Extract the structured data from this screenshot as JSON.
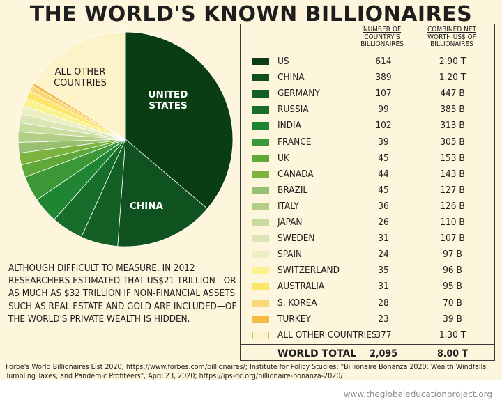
{
  "title": "THE WORLD'S KNOWN BILLIONAIRES",
  "pie_labels": {
    "us": "UNITED STATES",
    "china": "CHINA",
    "other": "ALL OTHER COUNTRIES"
  },
  "note": "ALTHOUGH DIFFICULT TO MEASURE, IN 2012 RESEARCHERS ESTIMATED THAT US$21 TRILLION—OR AS MUCH AS $32 TRILLION IF NON-FINANCIAL ASSETS SUCH AS REAL ESTATE AND GOLD ARE INCLUDED—OF THE WORLD'S PRIVATE WEALTH IS HIDDEN.",
  "table": {
    "col1_header": "NUMBER OF COUNTRY'S BILLIONAIRES",
    "col2_header": "COMBINED NET WORTH US$ OF BILLIONAIRES",
    "total_label": "WORLD TOTAL",
    "total_count": "2,095",
    "total_worth": "8.00 T"
  },
  "source": "Forbe's World Billionaires List 2020; https://www.forbes.com/billionaires/; Institute for Policy Studies: \"Billionaire Bonanza 2020: Wealth Windfalls, Tumbling Taxes, and Pandemic Profiteers\", April 23, 2020; https://ips-dc.org/billionaire-bonanza-2020/",
  "site": "www.theglobaleducationproject.org",
  "chart_data": {
    "type": "pie",
    "title": "THE WORLD'S KNOWN BILLIONAIRES",
    "value_unit": "Combined net worth (US$ billions)",
    "slices": [
      {
        "name": "US",
        "count": "614",
        "worth": "2.90 T",
        "value": 2900,
        "color": "#0b3d14"
      },
      {
        "name": "CHINA",
        "count": "389",
        "worth": "1.20 T",
        "value": 1200,
        "color": "#0f5220"
      },
      {
        "name": "GERMANY",
        "count": "107",
        "worth": "447 B",
        "value": 447,
        "color": "#135f24"
      },
      {
        "name": "RUSSIA",
        "count": "99",
        "worth": "385 B",
        "value": 385,
        "color": "#176e2b"
      },
      {
        "name": "INDIA",
        "count": "102",
        "worth": "313 B",
        "value": 313,
        "color": "#1f8533"
      },
      {
        "name": "FRANCE",
        "count": "39",
        "worth": "305 B",
        "value": 305,
        "color": "#3c9837"
      },
      {
        "name": "UK",
        "count": "45",
        "worth": "153 B",
        "value": 153,
        "color": "#5fa83a"
      },
      {
        "name": "CANADA",
        "count": "44",
        "worth": "143 B",
        "value": 143,
        "color": "#7db33f"
      },
      {
        "name": "BRAZIL",
        "count": "45",
        "worth": "127 B",
        "value": 127,
        "color": "#97c170"
      },
      {
        "name": "ITALY",
        "count": "36",
        "worth": "126 B",
        "value": 126,
        "color": "#b3cf86"
      },
      {
        "name": "JAPAN",
        "count": "26",
        "worth": "110 B",
        "value": 110,
        "color": "#c8dc9d"
      },
      {
        "name": "SWEDEN",
        "count": "31",
        "worth": "107 B",
        "value": 107,
        "color": "#dbe6b5"
      },
      {
        "name": "SPAIN",
        "count": "24",
        "worth": "97 B",
        "value": 97,
        "color": "#ecefc0"
      },
      {
        "name": "SWITZERLAND",
        "count": "35",
        "worth": "96 B",
        "value": 96,
        "color": "#f9f28d"
      },
      {
        "name": "AUSTRALIA",
        "count": "31",
        "worth": "95 B",
        "value": 95,
        "color": "#fbe66a"
      },
      {
        "name": "S. KOREA",
        "count": "28",
        "worth": "70 B",
        "value": 70,
        "color": "#f8d877"
      },
      {
        "name": "TURKEY",
        "count": "23",
        "worth": "39 B",
        "value": 39,
        "color": "#f5bb45"
      },
      {
        "name": "ALL OTHER COUNTRIES",
        "count": "377",
        "worth": "1.30 T",
        "value": 1300,
        "color": "#fdf3c8"
      }
    ]
  }
}
